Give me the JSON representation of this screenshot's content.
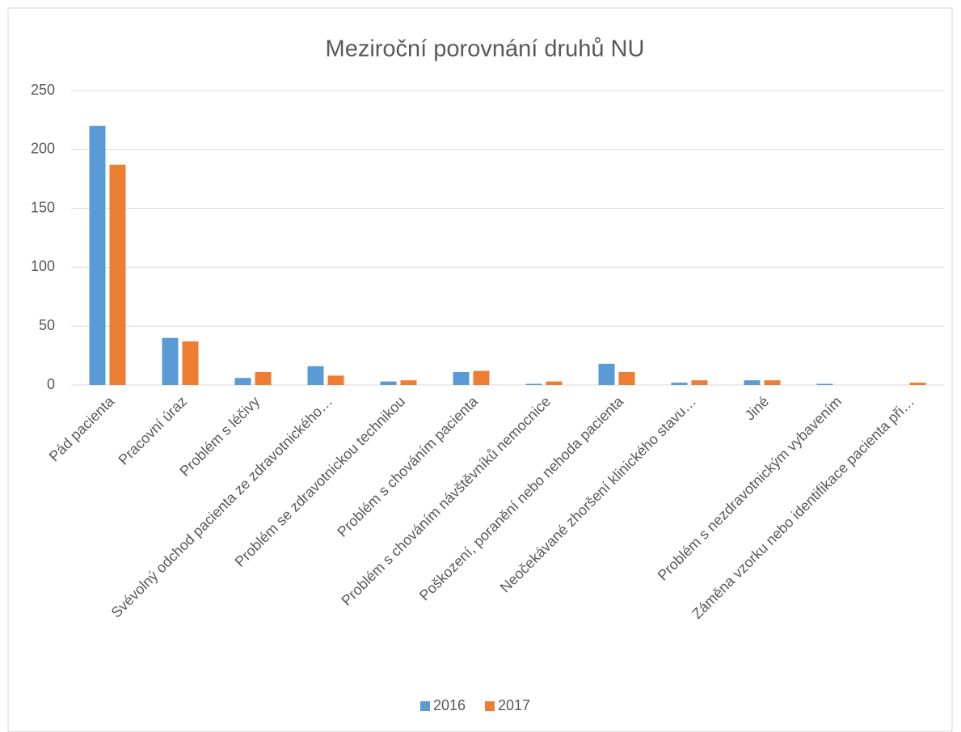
{
  "chart_data": {
    "type": "bar",
    "title": "Meziroční porovnání druhů NU",
    "categories": [
      "Pád pacienta",
      "Pracovní úraz",
      "Problém s léčivy",
      "Svévolný odchod pacienta ze zdravotnického…",
      "Problém se zdravotnickou technikou",
      "Problém s chováním pacienta",
      "Problém s chováním návštěvníků nemocnice",
      "Poškození, poranění nebo nehoda pacienta",
      "Neočekávané zhoršení klinického stavu…",
      "Jiné",
      "Problém s nezdravotnickým vybavením",
      "Záměna vzorku nebo identifikace pacienta při…"
    ],
    "series": [
      {
        "name": "2016",
        "color": "#5b9bd5",
        "values": [
          220,
          40,
          6,
          16,
          3,
          11,
          1,
          18,
          2,
          4,
          1,
          0
        ]
      },
      {
        "name": "2017",
        "color": "#ed7d31",
        "values": [
          187,
          37,
          11,
          8,
          4,
          12,
          3,
          11,
          4,
          4,
          0,
          2
        ]
      }
    ],
    "ylim": [
      0,
      250
    ],
    "yticks": [
      0,
      50,
      100,
      150,
      200,
      250
    ],
    "grid": true,
    "legend": "bottom"
  }
}
